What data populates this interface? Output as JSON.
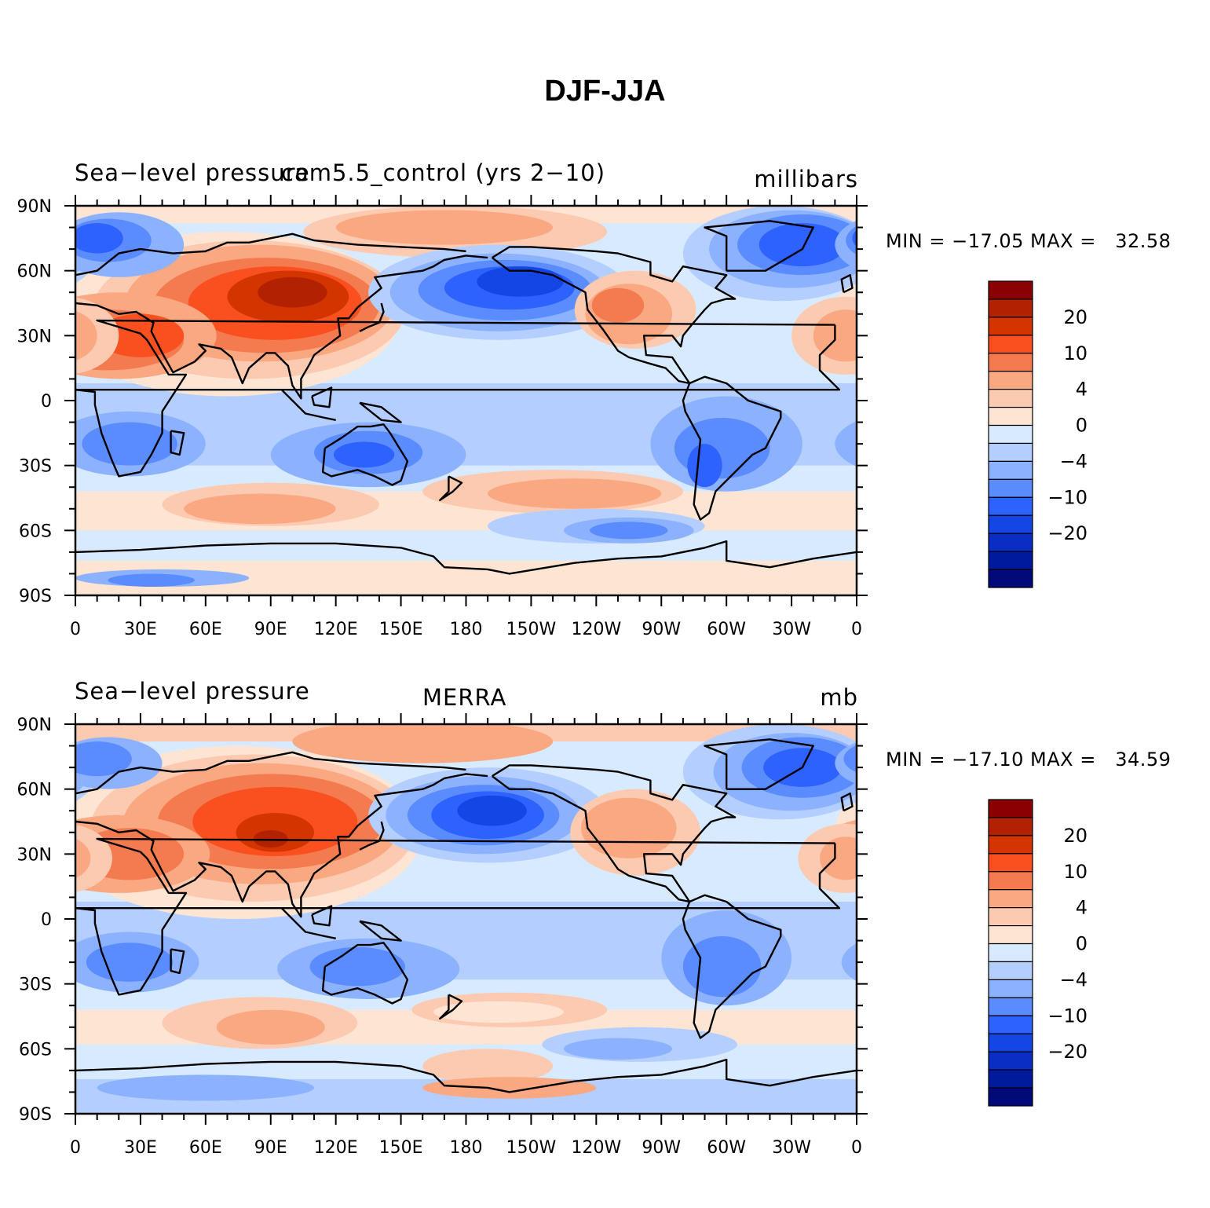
{
  "figure": {
    "title": "DJF-JJA"
  },
  "panels": [
    {
      "left_title": "Sea−level pressure",
      "center_title": "cam5.5_control (yrs 2−10)",
      "units": "millibars",
      "min_max": "MIN = −17.05 MAX =   32.58"
    },
    {
      "left_title": "Sea−level pressure",
      "center_title": "MERRA",
      "units": "mb",
      "min_max": "MIN = −17.10 MAX =   34.59"
    }
  ],
  "axes": {
    "lat_labels": [
      "90N",
      "60N",
      "30N",
      "0",
      "30S",
      "60S",
      "90S"
    ],
    "lon_labels": [
      "0",
      "30E",
      "60E",
      "90E",
      "120E",
      "150E",
      "180",
      "150W",
      "120W",
      "90W",
      "60W",
      "30W",
      "0"
    ]
  },
  "colorbar": {
    "colors": [
      "#8b0000",
      "#b22200",
      "#d43500",
      "#fa5020",
      "#f47a50",
      "#f9a882",
      "#fccab0",
      "#fee4d2",
      "#d8eaff",
      "#b4cfff",
      "#8cb2ff",
      "#5a8cff",
      "#2e62ff",
      "#1446e6",
      "#0a2ec4",
      "#001a9e",
      "#000a78"
    ],
    "labels": [
      "20",
      "10",
      "4",
      "0",
      "−4",
      "−10",
      "−20"
    ]
  },
  "map": {
    "projection": "cylindrical-equidistant",
    "central_longitude": 180,
    "features": [
      "positive anomalies over Eurasia and North Africa",
      "negative anomalies over North Pacific and North Atlantic",
      "negative anomalies over southern Africa, Australia and South America",
      "positive anomalies over southern mid-latitude oceans"
    ]
  }
}
